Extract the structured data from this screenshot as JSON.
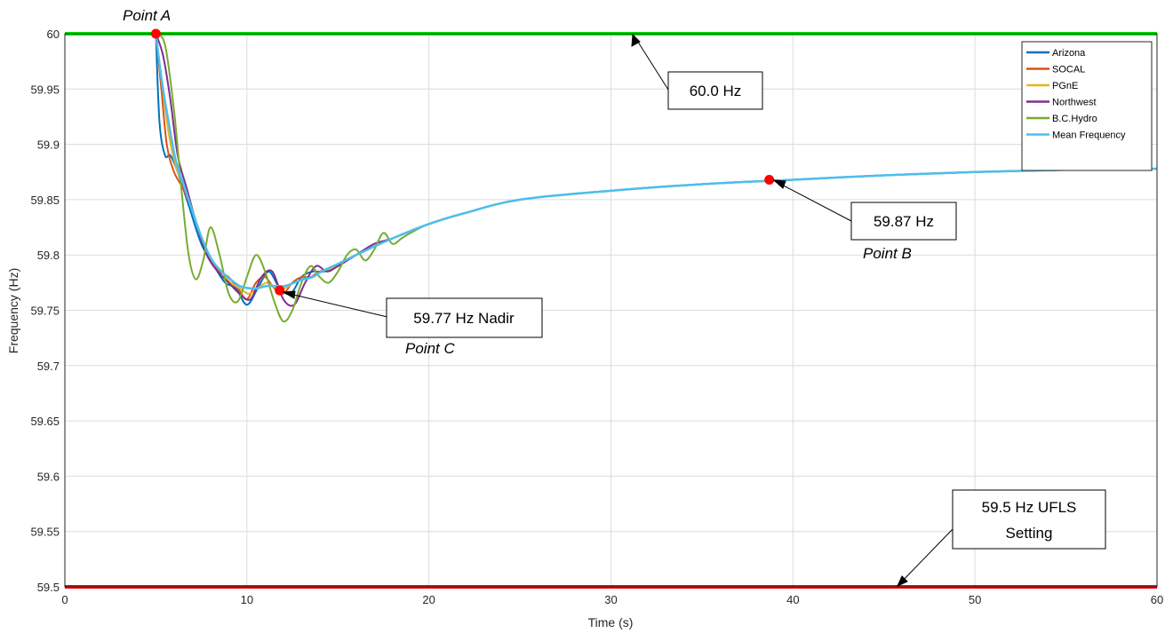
{
  "chart_data": {
    "type": "line",
    "xlabel": "Time (s)",
    "ylabel": "Frequency (Hz)",
    "xlim": [
      0,
      60
    ],
    "ylim": [
      59.5,
      60
    ],
    "x_ticks": [
      "0",
      "10",
      "20",
      "30",
      "40",
      "50",
      "60"
    ],
    "y_ticks": [
      "59.5",
      "59.55",
      "59.6",
      "59.65",
      "59.7",
      "59.75",
      "59.8",
      "59.85",
      "59.9",
      "59.95",
      "60"
    ],
    "grid": true,
    "legend_position": "top-right",
    "colors": {
      "Arizona": "#0072BD",
      "SOCAL": "#D95319",
      "PGnE": "#EDB120",
      "Northwest": "#7E2F8E",
      "B.C.Hydro": "#77AC30",
      "Mean Frequency": "#4DBEEE",
      "upper_ref": "#00E000",
      "lower_ref": "#FF0000",
      "marker": "#FF0000"
    },
    "series": [
      {
        "name": "Arizona",
        "x": [
          5,
          5.2,
          5.5,
          5.8,
          6.2,
          6.8,
          7.5,
          8.2,
          8.8,
          9.4,
          10,
          10.6,
          11.2,
          11.8,
          12.4,
          13,
          13.6,
          14.2,
          15,
          16,
          18,
          20,
          22,
          25,
          30,
          35,
          40,
          45,
          50,
          55,
          60
        ],
        "values": [
          60,
          59.92,
          59.89,
          59.89,
          59.875,
          59.845,
          59.81,
          59.79,
          59.775,
          59.77,
          59.755,
          59.77,
          59.785,
          59.77,
          59.765,
          59.78,
          59.785,
          59.785,
          59.79,
          59.8,
          59.815,
          59.828,
          59.838,
          59.85,
          59.858,
          59.864,
          59.868,
          59.872,
          59.875,
          59.877,
          59.878
        ]
      },
      {
        "name": "SOCAL",
        "x": [
          5,
          5.3,
          5.6,
          6,
          6.5,
          7,
          7.5,
          8,
          8.5,
          9,
          9.5,
          10,
          10.5,
          11,
          11.5,
          12,
          12.5,
          13,
          13.5,
          14,
          15,
          16,
          18,
          20,
          22,
          25,
          30,
          35,
          40,
          45,
          50,
          55,
          60
        ],
        "values": [
          60,
          59.95,
          59.9,
          59.875,
          59.86,
          59.84,
          59.815,
          59.795,
          59.785,
          59.78,
          59.77,
          59.76,
          59.775,
          59.78,
          59.77,
          59.765,
          59.775,
          59.78,
          59.78,
          59.785,
          59.79,
          59.8,
          59.815,
          59.828,
          59.838,
          59.85,
          59.858,
          59.864,
          59.868,
          59.872,
          59.875,
          59.877,
          59.878
        ]
      },
      {
        "name": "PGnE",
        "x": [
          5,
          5.3,
          5.7,
          6.1,
          6.6,
          7.1,
          7.6,
          8.1,
          8.6,
          9.1,
          9.6,
          10.1,
          10.6,
          11.1,
          11.6,
          12.1,
          12.6,
          13.1,
          13.6,
          14.1,
          15,
          16,
          18,
          20,
          22,
          25,
          30,
          35,
          40,
          45,
          50,
          55,
          60
        ],
        "values": [
          60,
          59.96,
          59.91,
          59.88,
          59.86,
          59.835,
          59.81,
          59.795,
          59.785,
          59.775,
          59.77,
          59.765,
          59.77,
          59.775,
          59.77,
          59.77,
          59.775,
          59.778,
          59.78,
          59.785,
          59.79,
          59.8,
          59.815,
          59.828,
          59.838,
          59.85,
          59.858,
          59.864,
          59.868,
          59.872,
          59.875,
          59.877,
          59.878
        ]
      },
      {
        "name": "Northwest",
        "x": [
          5,
          5.4,
          5.8,
          6.2,
          6.7,
          7.2,
          7.8,
          8.4,
          9,
          9.6,
          10.2,
          10.8,
          11.4,
          12,
          12.6,
          13.2,
          13.8,
          14.4,
          15,
          16,
          17,
          18,
          20,
          22,
          25,
          30,
          35,
          40,
          45,
          50,
          55,
          60
        ],
        "values": [
          60,
          59.98,
          59.94,
          59.89,
          59.86,
          59.83,
          59.8,
          59.785,
          59.775,
          59.765,
          59.76,
          59.78,
          59.785,
          59.76,
          59.755,
          59.775,
          59.79,
          59.785,
          59.79,
          59.8,
          59.81,
          59.815,
          59.828,
          59.838,
          59.85,
          59.858,
          59.864,
          59.868,
          59.872,
          59.875,
          59.877,
          59.878
        ]
      },
      {
        "name": "B.C.Hydro",
        "x": [
          5,
          5.5,
          6,
          6.4,
          6.8,
          7.2,
          7.6,
          8,
          8.5,
          9,
          9.5,
          10,
          10.5,
          11,
          11.5,
          12,
          12.5,
          13,
          13.5,
          14,
          14.5,
          15,
          15.5,
          16,
          16.5,
          17,
          17.5,
          18,
          18.5,
          19,
          20,
          22,
          25,
          30,
          35,
          40,
          45,
          50,
          55,
          60
        ],
        "values": [
          60,
          59.99,
          59.93,
          59.86,
          59.8,
          59.778,
          59.795,
          59.825,
          59.8,
          59.765,
          59.758,
          59.78,
          59.8,
          59.785,
          59.758,
          59.74,
          59.75,
          59.775,
          59.79,
          59.78,
          59.775,
          59.785,
          59.8,
          59.805,
          59.795,
          59.805,
          59.82,
          59.81,
          59.815,
          59.82,
          59.828,
          59.838,
          59.85,
          59.858,
          59.864,
          59.868,
          59.872,
          59.875,
          59.877,
          59.878
        ]
      },
      {
        "name": "Mean Frequency",
        "x": [
          5,
          5.3,
          5.7,
          6.1,
          6.6,
          7.1,
          7.6,
          8.1,
          8.6,
          9.1,
          9.6,
          10.1,
          10.6,
          11.1,
          11.6,
          12.1,
          12.6,
          13.1,
          13.6,
          14.1,
          15,
          16,
          18,
          20,
          22,
          25,
          30,
          35,
          40,
          45,
          50,
          55,
          60
        ],
        "values": [
          60,
          59.96,
          59.92,
          59.885,
          59.86,
          59.835,
          59.812,
          59.795,
          59.785,
          59.778,
          59.772,
          59.77,
          59.77,
          59.772,
          59.772,
          59.772,
          59.775,
          59.778,
          59.78,
          59.785,
          59.792,
          59.8,
          59.815,
          59.828,
          59.838,
          59.85,
          59.858,
          59.864,
          59.868,
          59.872,
          59.875,
          59.877,
          59.878
        ]
      }
    ],
    "reference_lines": [
      {
        "y": 60.0,
        "label": "60.0 Hz"
      },
      {
        "y": 59.5,
        "label": "59.5 Hz UFLS Setting"
      }
    ],
    "markers": [
      {
        "name": "Point A",
        "x": 5,
        "y": 60.0
      },
      {
        "name": "Point B",
        "x": 38.7,
        "y": 59.868
      },
      {
        "name": "Point C",
        "x": 11.8,
        "y": 59.768
      }
    ],
    "annotations": {
      "point_a": "Point A",
      "point_b": "Point B",
      "point_c": "Point C",
      "hz60": "60.0 Hz",
      "b_value": "59.87 Hz",
      "nadir": "59.77 Hz Nadir",
      "ufls_line1": "59.5 Hz UFLS",
      "ufls_line2": "Setting"
    }
  }
}
